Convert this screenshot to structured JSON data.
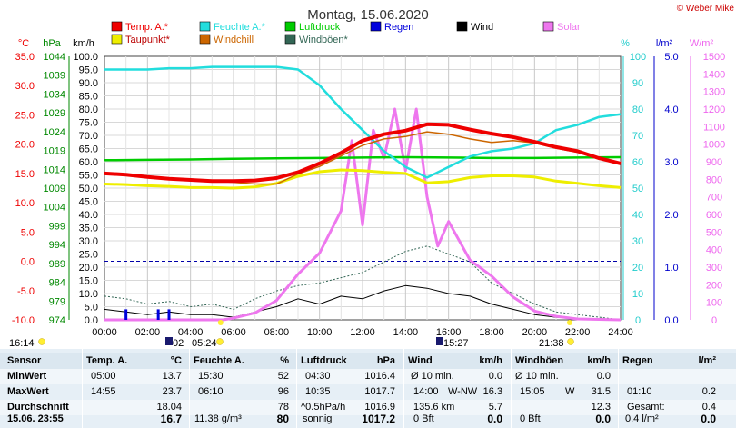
{
  "copyright": "© Weber Mike",
  "chart_data": {
    "type": "line",
    "title": "Montag, 15.06.2020",
    "x_ticks": [
      "00:00",
      "02:00",
      "04:00",
      "06:00",
      "08:00",
      "10:00",
      "12:00",
      "14:00",
      "16:00",
      "18:00",
      "20:00",
      "22:00",
      "24:00"
    ],
    "x_range_hours": [
      0,
      24
    ],
    "grid": true,
    "legend_placement": "top",
    "legend": [
      {
        "label": "Temp. A.*",
        "color": "#ee0000"
      },
      {
        "label": "Taupunkt*",
        "color": "#eeee00"
      },
      {
        "label": "Feuchte A.*",
        "color": "#22dddd"
      },
      {
        "label": "Windchill",
        "color": "#cc6600"
      },
      {
        "label": "Luftdruck",
        "color": "#00cc00"
      },
      {
        "label": "Windböen*",
        "color": "#336655"
      },
      {
        "label": "Regen",
        "color": "#0000dd"
      },
      {
        "label": "Wind",
        "color": "#000000"
      },
      {
        "label": "Solar",
        "color": "#ee77ee"
      }
    ],
    "axes": {
      "temp": {
        "unit": "°C",
        "range": [
          -10,
          35
        ],
        "ticks": [
          "35.0",
          "30.0",
          "25.0",
          "20.0",
          "15.0",
          "10.0",
          "5.0",
          "0.0",
          "-5.0",
          "-10.0"
        ],
        "color": "#ee0000"
      },
      "pressure": {
        "unit": "hPa",
        "range": [
          974,
          1044
        ],
        "ticks": [
          "1044",
          "1039",
          "1034",
          "1029",
          "1024",
          "1019",
          "1014",
          "1009",
          "1004",
          "999",
          "994",
          "989",
          "984",
          "979",
          "974"
        ],
        "color": "#008800"
      },
      "wind": {
        "unit": "km/h",
        "range": [
          0,
          100
        ],
        "ticks": [
          "100.0",
          "95.0",
          "90.0",
          "85.0",
          "80.0",
          "75.0",
          "70.0",
          "65.0",
          "60.0",
          "55.0",
          "50.0",
          "45.0",
          "40.0",
          "35.0",
          "30.0",
          "25.0",
          "20.0",
          "15.0",
          "10.0",
          "5.0",
          "0.0"
        ],
        "color": "#000000"
      },
      "humidity": {
        "unit": "%",
        "range": [
          0,
          100
        ],
        "ticks": [
          "100",
          "90",
          "80",
          "70",
          "60",
          "50",
          "40",
          "30",
          "20",
          "10",
          "0"
        ],
        "color": "#22cccc"
      },
      "rain": {
        "unit": "l/m²",
        "range": [
          0,
          5
        ],
        "ticks": [
          "5.0",
          "4.0",
          "3.0",
          "2.0",
          "1.0",
          "0.0"
        ],
        "color": "#0000cc"
      },
      "solar": {
        "unit": "W/m²",
        "range": [
          0,
          1500
        ],
        "ticks": [
          "1500",
          "1400",
          "1300",
          "1200",
          "1100",
          "1000",
          "900",
          "800",
          "700",
          "600",
          "500",
          "400",
          "300",
          "200",
          "100",
          "0"
        ],
        "color": "#ee66ee"
      }
    },
    "series": [
      {
        "name": "Temp. A.*",
        "axis": "temp",
        "x": [
          0,
          1,
          2,
          3,
          4,
          5,
          6,
          7,
          8,
          9,
          10,
          11,
          12,
          13,
          14,
          15,
          16,
          17,
          18,
          19,
          20,
          21,
          22,
          23,
          24
        ],
        "y": [
          15.0,
          14.8,
          14.4,
          14.1,
          13.9,
          13.7,
          13.7,
          13.8,
          14.2,
          15.2,
          16.7,
          18.5,
          20.6,
          21.7,
          22.3,
          23.4,
          23.3,
          22.5,
          21.8,
          21.2,
          20.4,
          19.5,
          18.8,
          17.6,
          16.7
        ]
      },
      {
        "name": "Taupunkt*",
        "axis": "temp",
        "x": [
          0,
          1,
          2,
          3,
          4,
          5,
          6,
          7,
          8,
          9,
          10,
          11,
          12,
          13,
          14,
          15,
          16,
          17,
          18,
          19,
          20,
          21,
          22,
          23,
          24
        ],
        "y": [
          13.2,
          13.1,
          12.9,
          12.8,
          12.6,
          12.6,
          12.5,
          12.7,
          13.3,
          14.5,
          15.3,
          15.6,
          15.5,
          15.2,
          15.0,
          13.4,
          13.6,
          14.3,
          14.6,
          14.6,
          14.4,
          13.7,
          13.3,
          12.9,
          12.6
        ]
      },
      {
        "name": "Feuchte A.*",
        "axis": "humidity",
        "x": [
          0,
          1,
          2,
          3,
          4,
          5,
          6,
          7,
          8,
          9,
          10,
          11,
          12,
          13,
          14,
          15,
          16,
          17,
          18,
          19,
          20,
          21,
          22,
          23,
          24
        ],
        "y": [
          95,
          95,
          95,
          95.5,
          95.5,
          96,
          96,
          96,
          96,
          95,
          89,
          80,
          72,
          64,
          58,
          54,
          58,
          62,
          64,
          65,
          67,
          72,
          74,
          77,
          78
        ]
      },
      {
        "name": "Windchill",
        "axis": "temp",
        "x": [
          0,
          1,
          2,
          3,
          4,
          5,
          6,
          7,
          8,
          9,
          10,
          11,
          12,
          13,
          14,
          15,
          16,
          17,
          18,
          19,
          20,
          21,
          22,
          23,
          24
        ],
        "y": [
          15.0,
          14.8,
          14.4,
          14.1,
          13.9,
          13.7,
          13.5,
          13.2,
          13.2,
          14.9,
          16.2,
          18.0,
          19.8,
          20.9,
          21.3,
          22.1,
          21.7,
          20.9,
          20.3,
          20.6,
          20.2,
          19.3,
          18.6,
          17.5,
          16.7
        ]
      },
      {
        "name": "Luftdruck",
        "axis": "pressure",
        "x": [
          0,
          2,
          4,
          6,
          8,
          10,
          12,
          14,
          16,
          18,
          20,
          22,
          24
        ],
        "y": [
          1016.4,
          1016.5,
          1016.6,
          1016.8,
          1016.9,
          1017.0,
          1017.1,
          1017.2,
          1017.1,
          1017.0,
          1017.0,
          1017.1,
          1017.2
        ]
      },
      {
        "name": "Windböen*",
        "axis": "wind",
        "x": [
          0,
          1,
          2,
          3,
          4,
          5,
          6,
          7,
          8,
          9,
          10,
          11,
          12,
          13,
          14,
          15,
          16,
          17,
          18,
          19,
          20,
          21,
          22,
          23,
          24
        ],
        "y": [
          9,
          8,
          6,
          7,
          5,
          6,
          4,
          8,
          11,
          13,
          14,
          16,
          18,
          22,
          26,
          28,
          25,
          22,
          14,
          10,
          6,
          3,
          2,
          1,
          0
        ]
      },
      {
        "name": "Wind",
        "axis": "wind",
        "x": [
          0,
          1,
          2,
          3,
          4,
          5,
          6,
          7,
          8,
          9,
          10,
          11,
          12,
          13,
          14,
          15,
          16,
          17,
          18,
          19,
          20,
          21,
          22,
          23,
          24
        ],
        "y": [
          4,
          3,
          2,
          3,
          2,
          2,
          1,
          3,
          5,
          8,
          6,
          9,
          8,
          11,
          13,
          12,
          10,
          9,
          6,
          4,
          2,
          1,
          0.5,
          0.5,
          0
        ]
      },
      {
        "name": "Solar",
        "axis": "solar",
        "x": [
          0,
          5.5,
          6,
          7,
          8,
          9,
          10,
          11,
          11.5,
          12,
          12.5,
          13,
          13.5,
          14,
          14.5,
          15,
          15.5,
          16,
          17,
          18,
          19,
          20,
          21,
          22,
          24
        ],
        "y": [
          0,
          0,
          10,
          40,
          110,
          260,
          380,
          620,
          1020,
          540,
          1080,
          920,
          1200,
          850,
          1200,
          700,
          420,
          560,
          340,
          250,
          130,
          50,
          20,
          5,
          0
        ]
      },
      {
        "name": "Regen",
        "axis": "rain",
        "x": [
          1.0,
          2.5,
          3.0
        ],
        "y": [
          0.2,
          0.2,
          0.2
        ]
      }
    ],
    "reference_lines": [
      {
        "axis": "temp",
        "value": 0.0,
        "style": "dashed",
        "color": "#0000aa"
      }
    ],
    "markers": [
      {
        "label": "16:14",
        "icon": "sunrise-icon"
      },
      {
        "label": "02",
        "icon": "moon-icon"
      },
      {
        "label": "05:24",
        "icon": "sun-icon"
      },
      {
        "label": "15:27",
        "icon": "moon-icon"
      },
      {
        "label": "21:38",
        "icon": "sunset-icon"
      }
    ]
  },
  "stats": {
    "headers": {
      "sensor": "Sensor",
      "temp": "Temp. A.",
      "temp_unit": "°C",
      "hum": "Feuchte A.",
      "hum_unit": "%",
      "press": "Luftdruck",
      "press_unit": "hPa",
      "wind": "Wind",
      "wind_unit": "km/h",
      "gust": "Windböen",
      "gust_unit": "km/h",
      "rain": "Regen",
      "rain_unit": "l/m²"
    },
    "rows": [
      {
        "label": "MinWert",
        "temp_time": "05:00",
        "temp_val": "13.7",
        "hum_time": "15:30",
        "hum_val": "52",
        "press_time": "04:30",
        "press_val": "1016.4",
        "wind_desc": "Ø 10 min.",
        "wind_val": "0.0",
        "gust_desc": "Ø 10 min.",
        "gust_val": "0.0",
        "rain_desc": "",
        "rain_val": ""
      },
      {
        "label": "MaxWert",
        "temp_time": "14:55",
        "temp_val": "23.7",
        "hum_time": "06:10",
        "hum_val": "96",
        "press_time": "10:35",
        "press_val": "1017.7",
        "wind_desc": "14:00",
        "wind_dir": "W-NW",
        "wind_val": "16.3",
        "gust_desc": "15:05",
        "gust_dir": "W",
        "gust_val": "31.5",
        "rain_desc": "01:10",
        "rain_val": "0.2"
      },
      {
        "label": "Durchschnitt",
        "temp_time": "",
        "temp_val": "18.04",
        "hum_time": "",
        "hum_val": "78",
        "press_time": "^0.5hPa/h",
        "press_val": "1016.9",
        "wind_desc": "135.6 km",
        "wind_val": "5.7",
        "gust_desc": "",
        "gust_val": "12.3",
        "rain_desc": "Gesamt:",
        "rain_val": "0.4"
      },
      {
        "label": "15.06. 23:55",
        "temp_time": "",
        "temp_val": "16.7",
        "hum_time": "11.38 g/m³",
        "hum_val": "80",
        "press_time": "sonnig",
        "press_val": "1017.2",
        "wind_desc": "0 Bft",
        "wind_val": "0.0",
        "gust_desc": "0 Bft",
        "gust_val": "0.0",
        "rain_desc": "0.4 l/m²",
        "rain_val": "0.0"
      }
    ]
  }
}
